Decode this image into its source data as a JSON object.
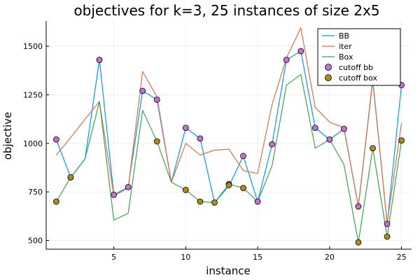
{
  "chart_data": {
    "type": "line",
    "title": "objectives for k=3, 25 instances of size 2x5",
    "xlabel": "instance",
    "ylabel": "objective",
    "xlim": [
      0.3,
      25.7
    ],
    "ylim": [
      455,
      1630
    ],
    "xticks": [
      5,
      10,
      15,
      20,
      25
    ],
    "yticks": [
      500,
      750,
      1000,
      1250,
      1500
    ],
    "grid": true,
    "legend_position": "top-right",
    "x": [
      1,
      2,
      3,
      4,
      5,
      6,
      7,
      8,
      9,
      10,
      11,
      12,
      13,
      14,
      15,
      16,
      17,
      18,
      19,
      20,
      21,
      22,
      23,
      24,
      25
    ],
    "series": [
      {
        "name": "BB",
        "kind": "line",
        "color": "#009AFA",
        "values": [
          1020,
          825,
          920,
          1430,
          735,
          775,
          1270,
          1225,
          800,
          1080,
          1025,
          695,
          780,
          935,
          700,
          995,
          1430,
          1475,
          1080,
          1020,
          1075,
          675,
          1330,
          585,
          1300
        ]
      },
      {
        "name": "iter",
        "kind": "line",
        "color": "#E26F46",
        "values": [
          940,
          1030,
          1125,
          1215,
          730,
          770,
          1370,
          1240,
          800,
          1000,
          940,
          965,
          970,
          860,
          845,
          1200,
          1440,
          1595,
          1185,
          1110,
          1080,
          675,
          1320,
          590,
          1105
        ]
      },
      {
        "name": "Box",
        "kind": "line",
        "color": "#3EA44E",
        "values": [
          700,
          825,
          920,
          1215,
          605,
          640,
          1170,
          1010,
          800,
          760,
          700,
          695,
          790,
          770,
          700,
          885,
          1300,
          1355,
          975,
          1020,
          890,
          490,
          975,
          520,
          1015
        ]
      },
      {
        "name": "cutoff bb",
        "kind": "scatter",
        "color": "#C271D2",
        "values": [
          1020,
          825,
          null,
          1430,
          735,
          775,
          1270,
          1225,
          null,
          1080,
          1025,
          null,
          790,
          935,
          700,
          995,
          1430,
          1475,
          1080,
          1020,
          1075,
          675,
          1315,
          585,
          1300
        ]
      },
      {
        "name": "cutoff box",
        "kind": "scatter",
        "color": "#AC8D18",
        "values": [
          700,
          825,
          null,
          null,
          null,
          null,
          null,
          1010,
          null,
          760,
          700,
          695,
          785,
          770,
          null,
          null,
          null,
          null,
          null,
          null,
          null,
          490,
          975,
          520,
          1015
        ]
      }
    ]
  }
}
